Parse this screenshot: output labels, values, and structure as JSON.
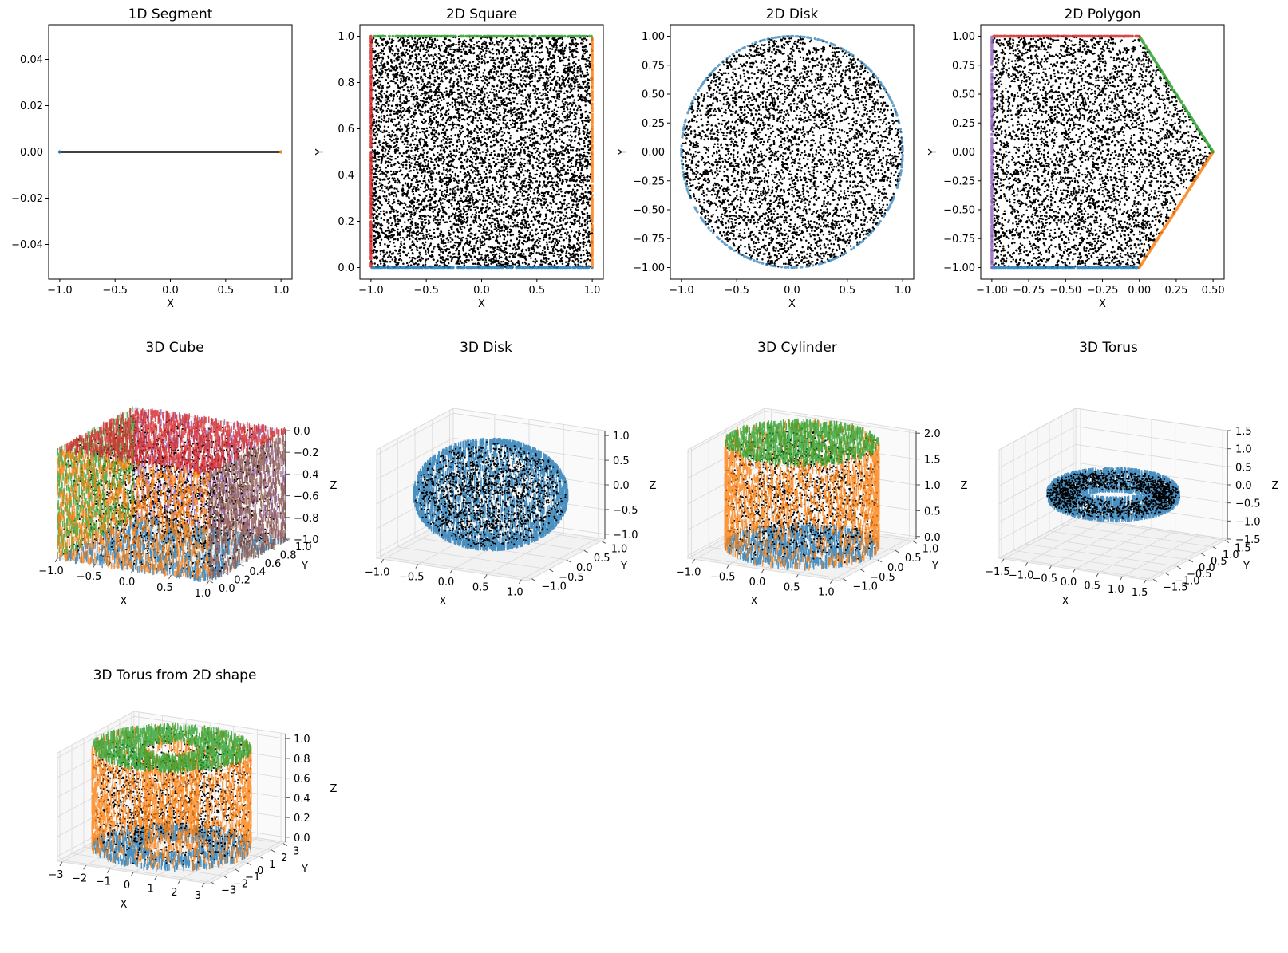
{
  "colors": {
    "interior": "#000000",
    "blue": "#1f77b4",
    "orange": "#ff7f0e",
    "green": "#2ca02c",
    "red": "#d62728",
    "purple": "#9467bd",
    "brown": "#8c564b",
    "pink": "#e377c2"
  },
  "chart_data": [
    {
      "type": "scatter",
      "title": "1D Segment",
      "xlabel": "X",
      "ylabel": "",
      "xlim": [
        -1.1,
        1.1
      ],
      "ylim": [
        -0.055,
        0.055
      ],
      "xticks": [
        -1.0,
        -0.5,
        0.0,
        0.5,
        1.0
      ],
      "xticklabels": [
        "−1.0",
        "−0.5",
        "0.0",
        "0.5",
        "1.0"
      ],
      "yticks": [
        -0.04,
        -0.02,
        0.0,
        0.02,
        0.04
      ],
      "yticklabels": [
        "−0.04",
        "−0.02",
        "0.00",
        "0.02",
        "0.04"
      ],
      "shape": "segment",
      "domain_min": -1.0,
      "domain_max": 1.0,
      "series": [
        {
          "role": "interior",
          "color": "interior"
        },
        {
          "role": "boundary x=-1",
          "color": "blue",
          "x": -1.0,
          "y": 0.0
        },
        {
          "role": "boundary x=1",
          "color": "orange",
          "x": 1.0,
          "y": 0.0
        }
      ]
    },
    {
      "type": "scatter",
      "title": "2D Square",
      "xlabel": "X",
      "ylabel": "Y",
      "xlim": [
        -1.1,
        1.1
      ],
      "ylim": [
        -0.05,
        1.05
      ],
      "xticks": [
        -1.0,
        -0.5,
        0.0,
        0.5,
        1.0
      ],
      "xticklabels": [
        "−1.0",
        "−0.5",
        "0.0",
        "0.5",
        "1.0"
      ],
      "yticks": [
        0.0,
        0.2,
        0.4,
        0.6,
        0.8,
        1.0
      ],
      "yticklabels": [
        "0.0",
        "0.2",
        "0.4",
        "0.6",
        "0.8",
        "1.0"
      ],
      "shape": "rectangle",
      "x_range": [
        -1.0,
        1.0
      ],
      "y_range": [
        0.0,
        1.0
      ],
      "series": [
        {
          "role": "interior",
          "color": "interior"
        },
        {
          "role": "bottom y=0",
          "color": "blue"
        },
        {
          "role": "right x=1",
          "color": "orange"
        },
        {
          "role": "top y=1",
          "color": "green"
        },
        {
          "role": "left x=-1",
          "color": "red"
        }
      ]
    },
    {
      "type": "scatter",
      "title": "2D Disk",
      "xlabel": "X",
      "ylabel": "Y",
      "xlim": [
        -1.1,
        1.1
      ],
      "ylim": [
        -1.1,
        1.1
      ],
      "xticks": [
        -1.0,
        -0.5,
        0.0,
        0.5,
        1.0
      ],
      "xticklabels": [
        "−1.0",
        "−0.5",
        "0.0",
        "0.5",
        "1.0"
      ],
      "yticks": [
        -1.0,
        -0.75,
        -0.5,
        -0.25,
        0.0,
        0.25,
        0.5,
        0.75,
        1.0
      ],
      "yticklabels": [
        "−1.00",
        "−0.75",
        "−0.50",
        "−0.25",
        "0.00",
        "0.25",
        "0.50",
        "0.75",
        "1.00"
      ],
      "shape": "disk",
      "center": [
        0.0,
        0.0
      ],
      "radius": 1.0,
      "series": [
        {
          "role": "interior",
          "color": "interior"
        },
        {
          "role": "circle boundary",
          "color": "blue"
        }
      ]
    },
    {
      "type": "scatter",
      "title": "2D Polygon",
      "xlabel": "X",
      "ylabel": "Y",
      "xlim": [
        -1.075,
        0.575
      ],
      "ylim": [
        -1.1,
        1.1
      ],
      "xticks": [
        -1.0,
        -0.75,
        -0.5,
        -0.25,
        0.0,
        0.25,
        0.5
      ],
      "xticklabels": [
        "−1.00",
        "−0.75",
        "−0.50",
        "−0.25",
        "0.00",
        "0.25",
        "0.50"
      ],
      "yticks": [
        -1.0,
        -0.75,
        -0.5,
        -0.25,
        0.0,
        0.25,
        0.5,
        0.75,
        1.0
      ],
      "yticklabels": [
        "−1.00",
        "−0.75",
        "−0.50",
        "−0.25",
        "0.00",
        "0.25",
        "0.50",
        "0.75",
        "1.00"
      ],
      "shape": "polygon",
      "vertices": [
        [
          -1.0,
          -1.0
        ],
        [
          0.0,
          -1.0
        ],
        [
          0.5,
          0.0
        ],
        [
          0.0,
          1.0
        ],
        [
          -1.0,
          1.0
        ]
      ],
      "series": [
        {
          "role": "interior",
          "color": "interior"
        },
        {
          "role": "edge (-1,-1)-(0,-1)",
          "color": "blue"
        },
        {
          "role": "edge (0,-1)-(0.5,0)",
          "color": "orange"
        },
        {
          "role": "edge (0.5,0)-(0,1)",
          "color": "green"
        },
        {
          "role": "edge (0,1)-(-1,1)",
          "color": "red"
        },
        {
          "role": "edge (-1,1)-(-1,-1)",
          "color": "purple"
        }
      ]
    },
    {
      "type": "scatter3d",
      "title": "3D Cube",
      "xlabel": "X",
      "ylabel": "Y",
      "zlabel": "Z",
      "xlim": [
        -1.0,
        1.0
      ],
      "ylim": [
        0.0,
        1.0
      ],
      "zlim": [
        -1.0,
        0.0
      ],
      "xticks": [
        -1.0,
        -0.5,
        0.0,
        0.5,
        1.0
      ],
      "xticklabels": [
        "−1.0",
        "−0.5",
        "0.0",
        "0.5",
        "1.0"
      ],
      "yticks": [
        0.0,
        0.2,
        0.4,
        0.6,
        0.8,
        1.0
      ],
      "yticklabels": [
        "0.0",
        "0.2",
        "0.4",
        "0.6",
        "0.8",
        "1.0"
      ],
      "zticks": [
        -1.0,
        -0.8,
        -0.6,
        -0.4,
        -0.2,
        0.0
      ],
      "zticklabels": [
        "−1.0",
        "−0.8",
        "−0.6",
        "−0.4",
        "−0.2",
        "0.0"
      ],
      "shape": "box",
      "series": [
        {
          "role": "interior",
          "color": "interior"
        },
        {
          "role": "face z=-1",
          "color": "blue"
        },
        {
          "role": "face y=0",
          "color": "orange"
        },
        {
          "role": "face x=-1",
          "color": "green"
        },
        {
          "role": "face z=0",
          "color": "red"
        },
        {
          "role": "face y=1",
          "color": "purple"
        },
        {
          "role": "face x=1",
          "color": "brown"
        }
      ]
    },
    {
      "type": "scatter3d",
      "title": "3D Disk",
      "xlabel": "X",
      "ylabel": "Y",
      "zlabel": "Z",
      "xlim": [
        -1.1,
        1.1
      ],
      "ylim": [
        -1.1,
        1.1
      ],
      "zlim": [
        -1.1,
        1.1
      ],
      "xticks": [
        -1.0,
        -0.5,
        0.0,
        0.5,
        1.0
      ],
      "xticklabels": [
        "−1.0",
        "−0.5",
        "0.0",
        "0.5",
        "1.0"
      ],
      "yticks": [
        -1.0,
        -0.5,
        0.0,
        0.5,
        1.0
      ],
      "yticklabels": [
        "−1.0",
        "−0.5",
        "0.0",
        "0.5",
        "1.0"
      ],
      "zticks": [
        -1.0,
        -0.5,
        0.0,
        0.5,
        1.0
      ],
      "zticklabels": [
        "−1.0",
        "−0.5",
        "0.0",
        "0.5",
        "1.0"
      ],
      "shape": "ball",
      "radius": 1.0,
      "series": [
        {
          "role": "interior",
          "color": "interior"
        },
        {
          "role": "sphere boundary",
          "color": "blue"
        }
      ]
    },
    {
      "type": "scatter3d",
      "title": "3D Cylinder",
      "xlabel": "X",
      "ylabel": "Y",
      "zlabel": "Z",
      "xlim": [
        -1.1,
        1.1
      ],
      "ylim": [
        -1.1,
        1.1
      ],
      "zlim": [
        -0.05,
        2.05
      ],
      "xticks": [
        -1.0,
        -0.5,
        0.0,
        0.5,
        1.0
      ],
      "xticklabels": [
        "−1.0",
        "−0.5",
        "0.0",
        "0.5",
        "1.0"
      ],
      "yticks": [
        -1.0,
        -0.5,
        0.0,
        0.5,
        1.0
      ],
      "yticklabels": [
        "−1.0",
        "−0.5",
        "0.0",
        "0.5",
        "1.0"
      ],
      "zticks": [
        0.0,
        0.5,
        1.0,
        1.5,
        2.0
      ],
      "zticklabels": [
        "0.0",
        "0.5",
        "1.0",
        "1.5",
        "2.0"
      ],
      "shape": "cylinder",
      "radius": 1.0,
      "height": [
        0.0,
        2.0
      ],
      "series": [
        {
          "role": "interior",
          "color": "interior"
        },
        {
          "role": "bottom z=0",
          "color": "blue"
        },
        {
          "role": "side wall",
          "color": "orange"
        },
        {
          "role": "top z=2",
          "color": "green"
        }
      ]
    },
    {
      "type": "scatter3d",
      "title": "3D Torus",
      "xlabel": "X",
      "ylabel": "Y",
      "zlabel": "Z",
      "xlim": [
        -1.6,
        1.6
      ],
      "ylim": [
        -1.6,
        1.6
      ],
      "zlim": [
        -1.5,
        1.5
      ],
      "xticks": [
        -1.5,
        -1.0,
        -0.5,
        0.0,
        0.5,
        1.0,
        1.5
      ],
      "xticklabels": [
        "−1.5",
        "−1.0",
        "−0.5",
        "0.0",
        "0.5",
        "1.0",
        "1.5"
      ],
      "yticks": [
        -1.5,
        -1.0,
        -0.5,
        0.0,
        0.5,
        1.0,
        1.5
      ],
      "yticklabels": [
        "−1.5",
        "−1.0",
        "−0.5",
        "0.0",
        "0.5",
        "1.0",
        "1.5"
      ],
      "zticks": [
        -1.5,
        -1.0,
        -0.5,
        0.0,
        0.5,
        1.0,
        1.5
      ],
      "zticklabels": [
        "−1.5",
        "−1.0",
        "−0.5",
        "0.0",
        "0.5",
        "1.0",
        "1.5"
      ],
      "shape": "torus",
      "major_radius": 1.0,
      "minor_radius": 0.25,
      "series": [
        {
          "role": "interior",
          "color": "interior"
        },
        {
          "role": "torus surface",
          "color": "blue"
        }
      ]
    },
    {
      "type": "scatter3d",
      "title": "3D Torus from 2D shape",
      "xlabel": "X",
      "ylabel": "Y",
      "zlabel": "Z",
      "xlim": [
        -3.2,
        3.2
      ],
      "ylim": [
        -3.2,
        3.2
      ],
      "zlim": [
        -0.05,
        1.05
      ],
      "xticks": [
        -3,
        -2,
        -1,
        0,
        1,
        2,
        3
      ],
      "xticklabels": [
        "−3",
        "−2",
        "−1",
        "0",
        "1",
        "2",
        "3"
      ],
      "yticks": [
        -3,
        -2,
        -1,
        0,
        1,
        2,
        3
      ],
      "yticklabels": [
        "−3",
        "−2",
        "−1",
        "0",
        "1",
        "2",
        "3"
      ],
      "zticks": [
        0.0,
        0.2,
        0.4,
        0.6,
        0.8,
        1.0
      ],
      "zticklabels": [
        "0.0",
        "0.2",
        "0.4",
        "0.6",
        "0.8",
        "1.0"
      ],
      "shape": "annular_prism",
      "inner_radius": 1.0,
      "outer_radius": 3.0,
      "height": [
        0.0,
        1.0
      ],
      "series": [
        {
          "role": "interior",
          "color": "interior"
        },
        {
          "role": "bottom z=0",
          "color": "blue"
        },
        {
          "role": "side walls",
          "color": "orange"
        },
        {
          "role": "top z=1",
          "color": "green"
        }
      ]
    }
  ]
}
